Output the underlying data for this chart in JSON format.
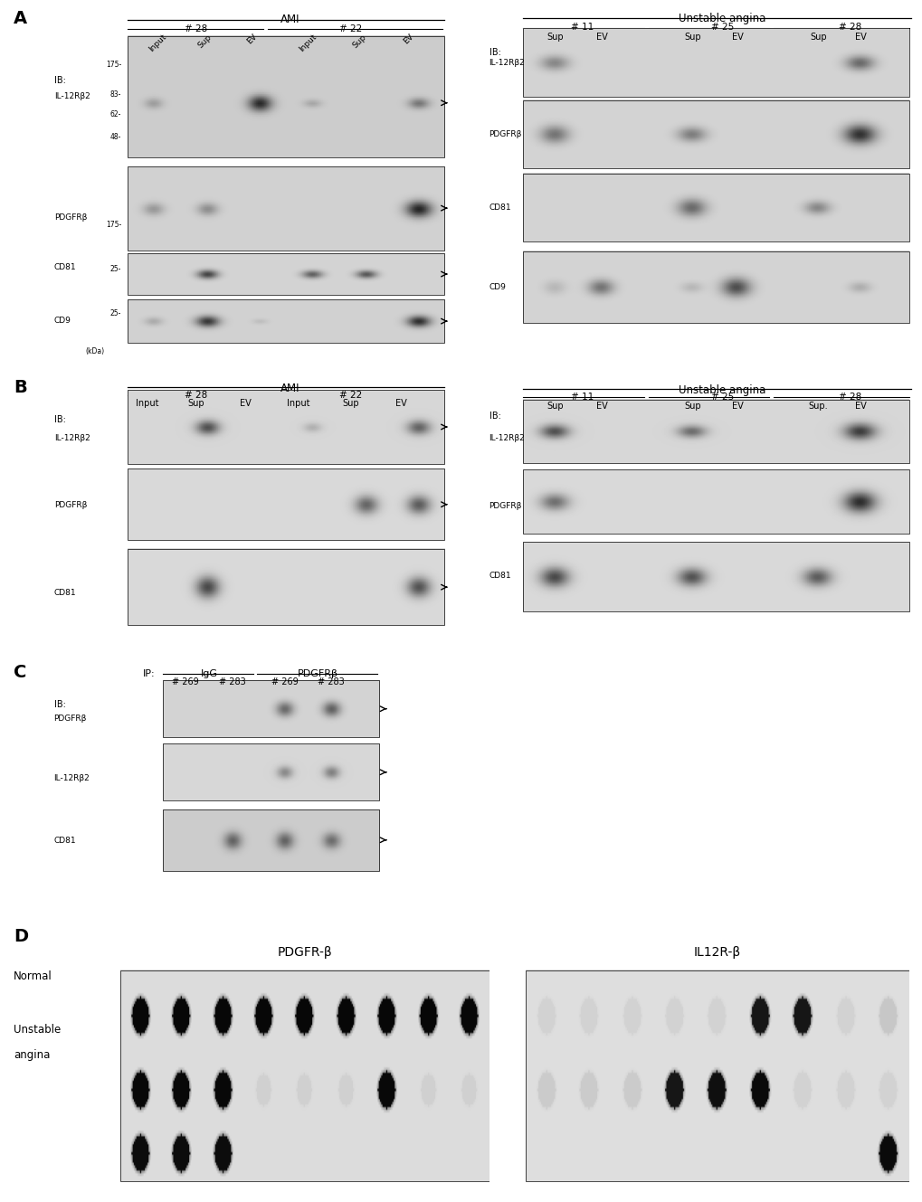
{
  "bg_color": "#ffffff",
  "panel_A_label": "A",
  "panel_B_label": "B",
  "panel_C_label": "C",
  "panel_D_label": "D",
  "A_left_title": "AMI",
  "A_left_sub1": "# 28",
  "A_left_sub2": "# 22",
  "A_left_cols": [
    "Input",
    "Sup",
    "EV",
    "Input",
    "Sup",
    "EV"
  ],
  "A_right_title": "Unstable angina",
  "A_right_sub": [
    "# 11",
    "# 25",
    "# 28"
  ],
  "A_right_cols": [
    "Sup",
    "EV",
    "Sup",
    "EV",
    "Sup",
    "EV"
  ],
  "B_left_title": "AMI",
  "B_left_sub1": "# 28",
  "B_left_sub2": "# 22",
  "B_left_cols": [
    "Input",
    "Sup",
    "EV",
    "Input",
    "Sup",
    "EV"
  ],
  "B_right_title": "Unstable angina",
  "B_right_sub": [
    "# 11",
    "# 25",
    "# 28"
  ],
  "B_right_cols": [
    "Sup",
    "EV",
    "Sup",
    "EV",
    "Sup.",
    "EV"
  ],
  "C_igg": "IgG",
  "C_pdgfr": "PDGFRβ",
  "C_cols": [
    "# 269",
    "# 283",
    "# 269",
    "# 283"
  ],
  "D_pdgfr_title": "PDGFR-β",
  "D_il12r_title": "IL12R-β"
}
